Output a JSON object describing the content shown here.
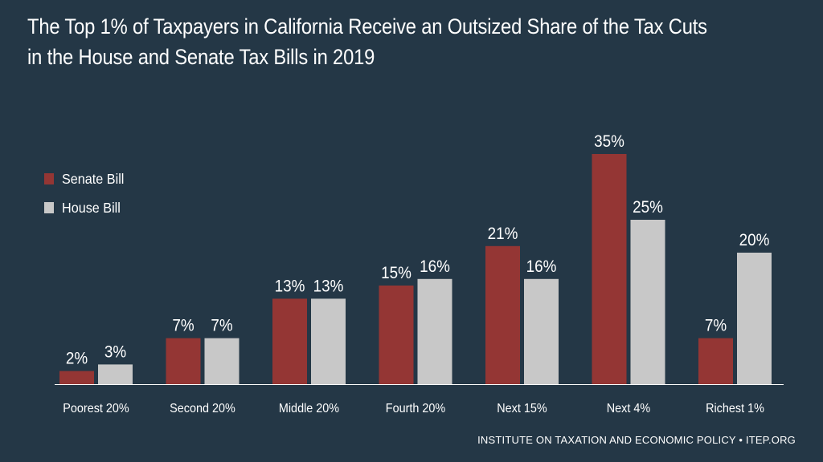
{
  "title_lines": [
    "The Top 1% of Taxpayers in California Receive an Outsized Share of the Tax Cuts",
    "in the House and Senate Tax Bills in 2019"
  ],
  "footer": "INSTITUTE ON TAXATION AND ECONOMIC POLICY • ITEP.ORG",
  "colors": {
    "background": "#243746",
    "senate": "#943634",
    "house": "#c8c8c8",
    "text": "#ffffff"
  },
  "chart_data": {
    "type": "bar",
    "title": "The Top 1% of Taxpayers in California Receive an Outsized Share of the Tax Cuts in the House and Senate Tax Bills in 2019",
    "categories": [
      "Poorest 20%",
      "Second 20%",
      "Middle 20%",
      "Fourth 20%",
      "Next 15%",
      "Next 4%",
      "Richest 1%"
    ],
    "series": [
      {
        "name": "Senate Bill",
        "values": [
          2,
          7,
          13,
          15,
          21,
          35,
          7
        ],
        "labels": [
          "2%",
          "7%",
          "13%",
          "15%",
          "21%",
          "35%",
          "7%"
        ]
      },
      {
        "name": "House Bill",
        "values": [
          3,
          7,
          13,
          16,
          16,
          25,
          20
        ],
        "labels": [
          "3%",
          "7%",
          "13%",
          "16%",
          "16%",
          "25%",
          "20%"
        ]
      }
    ],
    "xlabel": "",
    "ylabel": "",
    "ylim": [
      0,
      35
    ],
    "grid": false,
    "legend": "top-left"
  }
}
